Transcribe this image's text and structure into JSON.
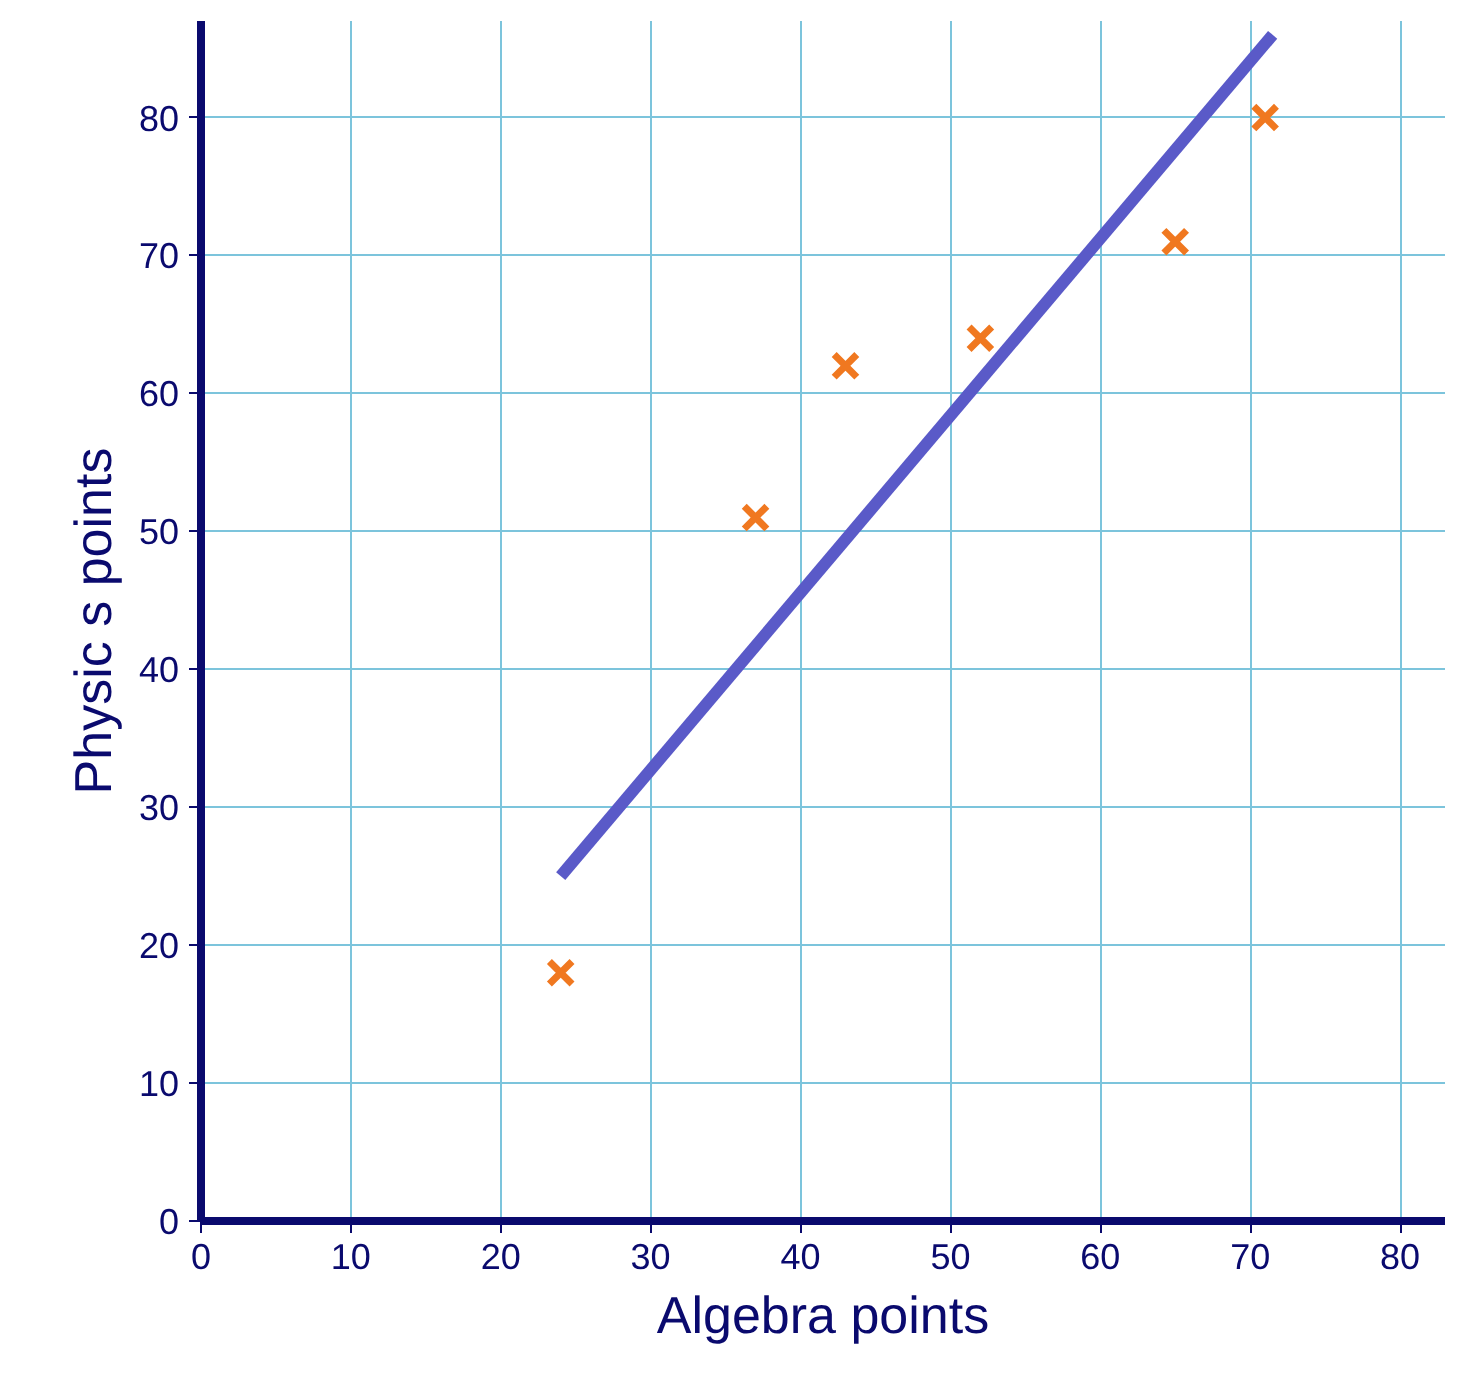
{
  "chart_data": {
    "type": "scatter",
    "xlabel": "Algebra points",
    "ylabel": "Physic s points",
    "series": [
      {
        "color": "#f07820",
        "marker": "cross",
        "x": [
          24,
          37,
          43,
          52,
          65,
          71
        ],
        "values": [
          18,
          51,
          62,
          64,
          71,
          80
        ]
      },
      {
        "type": "line",
        "color": "#5a5ac8",
        "x": [
          24,
          71.5
        ],
        "values": [
          25,
          86
        ]
      }
    ],
    "xlim": [
      0,
      83
    ],
    "ylim": [
      0,
      87
    ],
    "xticks": [
      0,
      10,
      20,
      30,
      40,
      50,
      60,
      70,
      80
    ],
    "yticks": [
      0,
      10,
      20,
      30,
      40,
      50,
      60,
      70,
      80
    ],
    "grid": true
  }
}
